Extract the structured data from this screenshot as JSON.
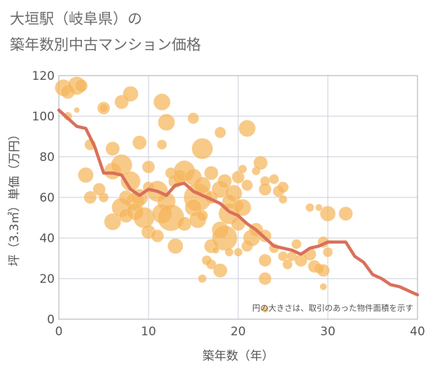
{
  "title": {
    "line1": "大垣駅（岐阜県）の",
    "line2": "築年数別中古マンション価格"
  },
  "chart_data": {
    "type": "scatter",
    "xlabel": "築年数（年）",
    "ylabel": "坪（3.3㎡）単価（万円）",
    "xlim": [
      0,
      40
    ],
    "ylim": [
      0,
      120
    ],
    "xticks": [
      0,
      10,
      20,
      30,
      40
    ],
    "yticks": [
      0,
      20,
      40,
      60,
      80,
      100,
      120
    ],
    "grid": true,
    "note": "円の大きさは、取引のあった物件面積を示す",
    "colors": {
      "bubble": "#f5b55a",
      "line": "#d9705a",
      "grid": "#c9ced8",
      "border": "#a8acb4"
    },
    "points": [
      [
        0.5,
        114,
        12
      ],
      [
        1,
        112,
        10
      ],
      [
        2,
        115,
        13
      ],
      [
        2.5,
        115,
        9
      ],
      [
        1,
        100,
        6
      ],
      [
        2,
        103,
        4
      ],
      [
        5,
        104,
        9
      ],
      [
        5,
        104,
        6
      ],
      [
        7,
        107,
        10
      ],
      [
        8,
        111,
        11
      ],
      [
        11.5,
        107,
        12
      ],
      [
        12,
        97,
        12
      ],
      [
        3.5,
        86,
        8
      ],
      [
        6,
        84,
        10
      ],
      [
        9,
        87,
        10
      ],
      [
        11.5,
        86,
        7
      ],
      [
        15,
        99,
        8
      ],
      [
        18,
        92,
        8
      ],
      [
        21,
        94,
        12
      ],
      [
        3,
        71,
        11
      ],
      [
        4.5,
        64,
        9
      ],
      [
        3.5,
        60,
        9
      ],
      [
        5,
        60,
        7
      ],
      [
        6,
        73,
        12
      ],
      [
        7,
        76,
        15
      ],
      [
        8,
        68,
        14
      ],
      [
        7.5,
        60,
        10
      ],
      [
        8.5,
        58,
        13
      ],
      [
        9,
        60,
        12
      ],
      [
        10,
        75,
        9
      ],
      [
        10,
        65,
        8
      ],
      [
        11,
        63,
        15
      ],
      [
        12,
        58,
        13
      ],
      [
        12.5,
        72,
        8
      ],
      [
        13,
        68,
        10
      ],
      [
        13.5,
        70,
        10
      ],
      [
        14,
        73,
        15
      ],
      [
        15,
        70,
        12
      ],
      [
        15.5,
        60,
        20
      ],
      [
        16,
        84,
        15
      ],
      [
        16,
        66,
        12
      ],
      [
        17,
        60,
        9
      ],
      [
        17,
        72,
        10
      ],
      [
        18,
        64,
        12
      ],
      [
        18.5,
        68,
        10
      ],
      [
        19,
        58,
        10
      ],
      [
        19.5,
        62,
        12
      ],
      [
        20,
        56,
        8
      ],
      [
        20,
        70,
        9
      ],
      [
        20.5,
        74,
        6
      ],
      [
        21,
        66,
        8
      ],
      [
        22,
        73,
        6
      ],
      [
        22.5,
        77,
        10
      ],
      [
        23,
        68,
        7
      ],
      [
        23,
        64,
        9
      ],
      [
        24,
        69,
        7
      ],
      [
        24.5,
        63,
        8
      ],
      [
        25,
        65,
        8
      ],
      [
        25,
        59,
        6
      ],
      [
        6,
        48,
        12
      ],
      [
        7,
        55,
        14
      ],
      [
        7.5,
        51,
        10
      ],
      [
        8.5,
        53,
        12
      ],
      [
        9.5,
        50,
        15
      ],
      [
        10,
        43,
        10
      ],
      [
        11,
        41,
        9
      ],
      [
        11.5,
        52,
        14
      ],
      [
        12.5,
        50,
        19
      ],
      [
        13,
        36,
        11
      ],
      [
        14,
        47,
        10
      ],
      [
        15,
        55,
        12
      ],
      [
        15.5,
        49,
        12
      ],
      [
        16,
        51,
        8
      ],
      [
        17,
        36,
        10
      ],
      [
        18,
        44,
        12
      ],
      [
        18.5,
        40,
        18
      ],
      [
        19,
        52,
        15
      ],
      [
        20,
        47,
        10
      ],
      [
        20.5,
        55,
        12
      ],
      [
        21,
        36,
        8
      ],
      [
        21.5,
        40,
        12
      ],
      [
        22,
        44,
        10
      ],
      [
        23,
        41,
        9
      ],
      [
        23,
        29,
        9
      ],
      [
        24,
        35,
        7
      ],
      [
        25,
        31,
        7
      ],
      [
        25.5,
        27,
        7
      ],
      [
        26,
        31,
        7
      ],
      [
        26.5,
        37,
        7
      ],
      [
        27,
        29,
        9
      ],
      [
        28,
        32,
        9
      ],
      [
        28.5,
        26,
        9
      ],
      [
        29,
        25,
        7
      ],
      [
        29.5,
        24,
        9
      ],
      [
        29.5,
        38,
        8
      ],
      [
        30,
        33,
        7
      ],
      [
        30,
        52,
        11
      ],
      [
        28,
        55,
        6
      ],
      [
        29,
        55,
        5
      ],
      [
        32,
        52,
        10
      ],
      [
        29.5,
        16,
        5
      ],
      [
        19,
        33,
        6
      ],
      [
        17,
        27,
        7
      ],
      [
        18,
        24,
        10
      ],
      [
        20,
        33,
        6
      ],
      [
        23,
        5,
        5
      ],
      [
        23,
        20,
        9
      ],
      [
        16,
        20,
        6
      ],
      [
        16.5,
        29,
        7
      ],
      [
        17.5,
        34,
        5
      ]
    ],
    "line": {
      "x": [
        0,
        1,
        2,
        3,
        4,
        5,
        6,
        7,
        8,
        9,
        10,
        11,
        12,
        13,
        14,
        15,
        16,
        17,
        18,
        19,
        20,
        21,
        22,
        23,
        24,
        25,
        26,
        27,
        28,
        29,
        30,
        31,
        32,
        33,
        34,
        35,
        36,
        37,
        38,
        39,
        40
      ],
      "y": [
        103,
        99,
        95,
        94,
        85,
        72,
        72,
        71,
        64,
        61,
        64,
        63,
        61,
        66,
        67,
        63,
        61,
        59,
        57,
        53,
        51,
        47,
        44,
        40,
        36,
        35,
        34,
        32,
        35,
        36,
        38,
        38,
        38,
        31,
        28,
        22,
        20,
        17,
        16,
        14,
        12
      ]
    }
  }
}
